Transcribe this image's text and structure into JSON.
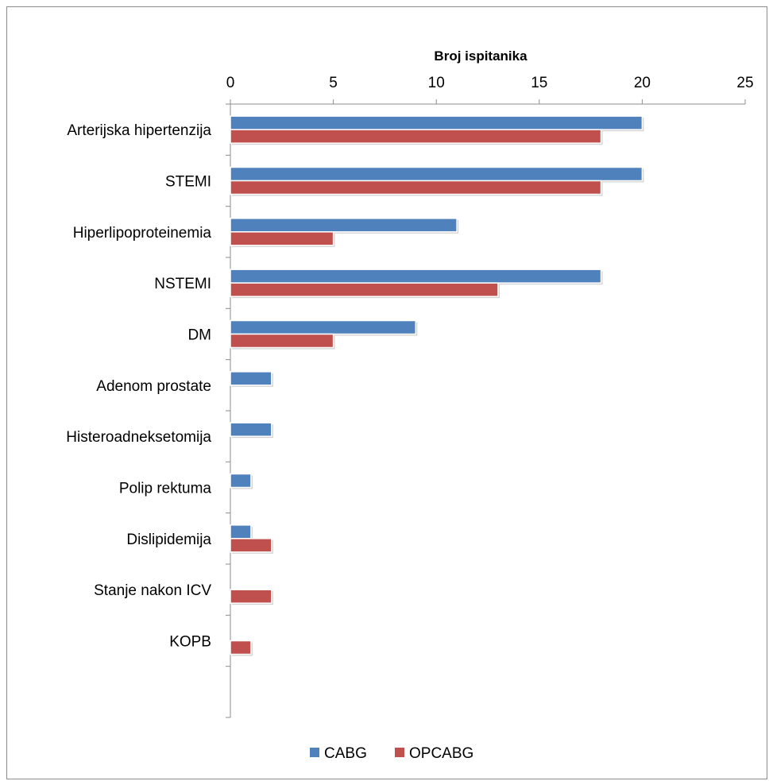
{
  "chart_data": {
    "type": "bar",
    "orientation": "horizontal",
    "title": "Broj ispitanika",
    "xlabel": "Broj ispitanika",
    "ylabel": "",
    "xlim": [
      0,
      25
    ],
    "ticks": [
      0,
      5,
      10,
      15,
      20,
      25
    ],
    "grid": false,
    "legend": "bottom",
    "categories": [
      "Arterijska hipertenzija",
      "STEMI",
      "Hiperlipoproteinemia",
      "NSTEMI",
      "DM",
      "Adenom prostate",
      "Histeroadneksetomija",
      "Polip rektuma",
      "Dislipidemija",
      "Stanje nakon ICV",
      "KOPB",
      ""
    ],
    "series": [
      {
        "name": "CABG",
        "color": "#4f81bd",
        "values": [
          20,
          20,
          11,
          18,
          9,
          2,
          2,
          1,
          1,
          0,
          0,
          0
        ]
      },
      {
        "name": "OPCABG",
        "color": "#c0504d",
        "values": [
          18,
          18,
          5,
          13,
          5,
          0,
          0,
          0,
          2,
          2,
          1,
          0
        ]
      }
    ]
  }
}
